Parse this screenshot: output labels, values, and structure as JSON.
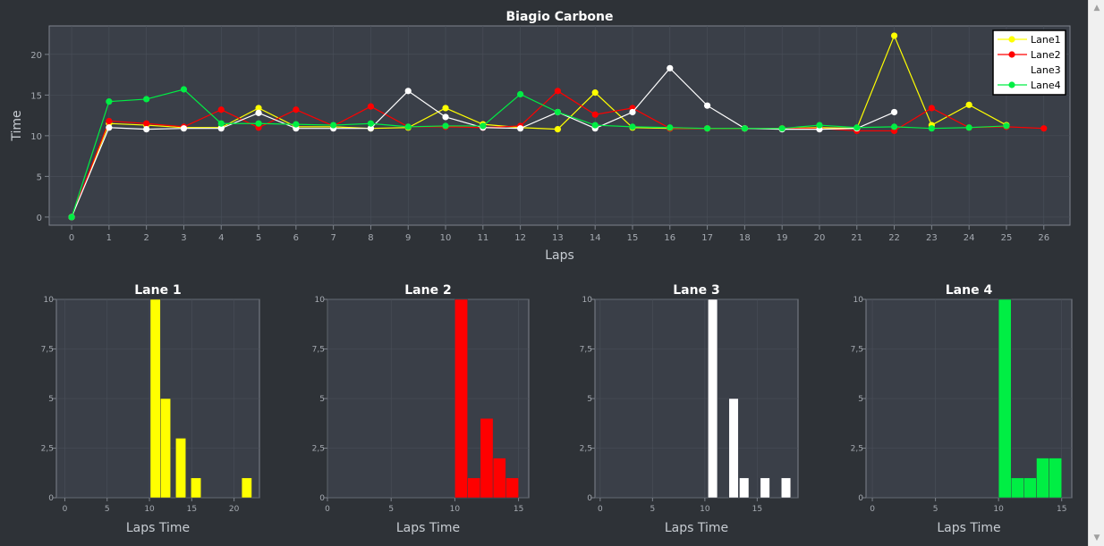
{
  "chart_data": [
    {
      "type": "line",
      "title": "Biagio Carbone",
      "xlabel": "Laps",
      "ylabel": "Time",
      "xlim": [
        -0.6,
        26.7
      ],
      "ylim": [
        -1,
        23.5
      ],
      "xticks": [
        0,
        1,
        2,
        3,
        4,
        5,
        6,
        7,
        8,
        9,
        10,
        11,
        12,
        13,
        14,
        15,
        16,
        17,
        18,
        19,
        20,
        21,
        22,
        23,
        24,
        25,
        26
      ],
      "yticks": [
        0,
        5,
        10,
        15,
        20
      ],
      "grid": true,
      "legend_position": "top-right",
      "series": [
        {
          "name": "Lane1",
          "color": "#ffff00",
          "x": [
            0,
            1,
            2,
            3,
            4,
            5,
            6,
            7,
            8,
            9,
            10,
            11,
            12,
            13,
            14,
            15,
            16,
            17,
            18,
            19,
            20,
            21,
            22,
            23,
            24,
            25
          ],
          "values": [
            0,
            11.5,
            11.3,
            11.0,
            11.0,
            13.4,
            11.1,
            11.1,
            10.9,
            11.0,
            13.4,
            11.4,
            11.0,
            10.8,
            15.3,
            11.0,
            10.9,
            10.9,
            10.9,
            10.9,
            11.0,
            10.9,
            22.3,
            11.3,
            13.8,
            11.3
          ]
        },
        {
          "name": "Lane2",
          "color": "#ff0000",
          "x": [
            0,
            1,
            2,
            3,
            4,
            5,
            6,
            7,
            8,
            9,
            10,
            11,
            12,
            13,
            14,
            15,
            16,
            17,
            18,
            19,
            20,
            21,
            22,
            23,
            24,
            25,
            26
          ],
          "values": [
            0,
            11.8,
            11.5,
            11.1,
            13.2,
            11.0,
            13.2,
            11.2,
            13.6,
            11.1,
            11.1,
            11.0,
            11.2,
            15.5,
            12.6,
            13.4,
            10.9,
            10.9,
            10.9,
            10.9,
            10.9,
            10.6,
            10.6,
            13.4,
            11.0,
            11.1,
            10.9
          ]
        },
        {
          "name": "Lane3",
          "color": "#ffffff",
          "x": [
            0,
            1,
            2,
            3,
            4,
            5,
            6,
            7,
            8,
            9,
            10,
            11,
            12,
            13,
            14,
            15,
            16,
            17,
            18,
            19,
            20,
            21,
            22
          ],
          "values": [
            0,
            11.0,
            10.8,
            10.9,
            10.9,
            12.8,
            10.9,
            10.9,
            10.9,
            15.5,
            12.3,
            11.0,
            10.9,
            12.9,
            10.9,
            12.9,
            18.3,
            13.7,
            10.9,
            10.8,
            10.8,
            10.9,
            12.9
          ]
        },
        {
          "name": "Lane4",
          "color": "#00ee44",
          "x": [
            0,
            1,
            2,
            3,
            4,
            5,
            6,
            7,
            8,
            9,
            10,
            11,
            12,
            13,
            14,
            15,
            16,
            17,
            18,
            19,
            20,
            21,
            22,
            23,
            24,
            25
          ],
          "values": [
            0,
            14.2,
            14.5,
            15.7,
            11.5,
            11.5,
            11.4,
            11.3,
            11.5,
            11.1,
            11.2,
            11.2,
            15.1,
            12.9,
            11.3,
            11.1,
            11.0,
            10.9,
            10.9,
            10.9,
            11.3,
            11.0,
            11.1,
            10.9,
            11.0,
            11.2
          ]
        }
      ]
    },
    {
      "type": "bar",
      "title": "Lane 1",
      "xlabel": "Laps Time",
      "ylabel": "",
      "color": "#ffff00",
      "xlim": [
        -1,
        23
      ],
      "ylim": [
        0,
        10
      ],
      "xticks": [
        {
          "v": 0,
          "label": "0"
        },
        {
          "v": 5,
          "label": "5"
        },
        {
          "v": 10,
          "label": "10"
        },
        {
          "v": 15,
          "label": "15"
        },
        {
          "v": 20,
          "label": "20"
        }
      ],
      "yticks": [
        {
          "v": 0,
          "label": "0"
        },
        {
          "v": 2.5,
          "label": "2,5"
        },
        {
          "v": 5,
          "label": "5"
        },
        {
          "v": 7.5,
          "label": "7,5"
        },
        {
          "v": 10,
          "label": "10"
        }
      ],
      "bins": [
        {
          "x0": 10.1,
          "x1": 11.3,
          "count": 10
        },
        {
          "x0": 11.3,
          "x1": 12.5,
          "count": 5
        },
        {
          "x0": 13.1,
          "x1": 14.3,
          "count": 3
        },
        {
          "x0": 14.9,
          "x1": 16.1,
          "count": 1
        },
        {
          "x0": 20.9,
          "x1": 22.1,
          "count": 1
        }
      ]
    },
    {
      "type": "bar",
      "title": "Lane 2",
      "xlabel": "Laps Time",
      "ylabel": "",
      "color": "#ff0000",
      "xlim": [
        0,
        15.8
      ],
      "ylim": [
        0,
        10
      ],
      "xticks": [
        {
          "v": 0,
          "label": "0"
        },
        {
          "v": 5,
          "label": "5"
        },
        {
          "v": 10,
          "label": "10"
        },
        {
          "v": 15,
          "label": "15"
        }
      ],
      "yticks": [
        {
          "v": 0,
          "label": "0"
        },
        {
          "v": 2.5,
          "label": "2,5"
        },
        {
          "v": 5,
          "label": "5"
        },
        {
          "v": 7.5,
          "label": "7,5"
        },
        {
          "v": 10,
          "label": "10"
        }
      ],
      "bins": [
        {
          "x0": 10.0,
          "x1": 11.0,
          "count": 10
        },
        {
          "x0": 11.0,
          "x1": 12.0,
          "count": 1
        },
        {
          "x0": 12.0,
          "x1": 13.0,
          "count": 4
        },
        {
          "x0": 13.0,
          "x1": 14.0,
          "count": 2
        },
        {
          "x0": 14.0,
          "x1": 15.0,
          "count": 1
        }
      ]
    },
    {
      "type": "bar",
      "title": "Lane 3",
      "xlabel": "Laps Time",
      "ylabel": "",
      "color": "#ffffff",
      "xlim": [
        -0.5,
        18.9
      ],
      "ylim": [
        0,
        10
      ],
      "xticks": [
        {
          "v": 0,
          "label": "0"
        },
        {
          "v": 5,
          "label": "5"
        },
        {
          "v": 10,
          "label": "10"
        },
        {
          "v": 15,
          "label": "15"
        }
      ],
      "yticks": [
        {
          "v": 0,
          "label": "0"
        },
        {
          "v": 2.5,
          "label": "2,5"
        },
        {
          "v": 5,
          "label": "5"
        },
        {
          "v": 7.5,
          "label": "7,5"
        },
        {
          "v": 10,
          "label": "10"
        }
      ],
      "bins": [
        {
          "x0": 10.3,
          "x1": 11.2,
          "count": 10
        },
        {
          "x0": 12.3,
          "x1": 13.2,
          "count": 5
        },
        {
          "x0": 13.3,
          "x1": 14.2,
          "count": 1
        },
        {
          "x0": 15.3,
          "x1": 16.2,
          "count": 1
        },
        {
          "x0": 17.3,
          "x1": 18.2,
          "count": 1
        }
      ]
    },
    {
      "type": "bar",
      "title": "Lane 4",
      "xlabel": "Laps Time",
      "ylabel": "",
      "color": "#00ee44",
      "xlim": [
        -0.5,
        15.8
      ],
      "ylim": [
        0,
        10
      ],
      "xticks": [
        {
          "v": 0,
          "label": "0"
        },
        {
          "v": 5,
          "label": "5"
        },
        {
          "v": 10,
          "label": "10"
        },
        {
          "v": 15,
          "label": "15"
        }
      ],
      "yticks": [
        {
          "v": 0,
          "label": "0"
        },
        {
          "v": 2.5,
          "label": "2,5"
        },
        {
          "v": 5,
          "label": "5"
        },
        {
          "v": 7.5,
          "label": "7,5"
        },
        {
          "v": 10,
          "label": "10"
        }
      ],
      "bins": [
        {
          "x0": 10.0,
          "x1": 11.0,
          "count": 10
        },
        {
          "x0": 11.0,
          "x1": 12.0,
          "count": 1
        },
        {
          "x0": 12.0,
          "x1": 13.0,
          "count": 1
        },
        {
          "x0": 13.0,
          "x1": 14.0,
          "count": 2
        },
        {
          "x0": 14.0,
          "x1": 15.0,
          "count": 2
        }
      ]
    }
  ],
  "theme": {
    "page_bg": "#2e3237",
    "plot_bg": "#3a3f48",
    "grid": "#4a505a",
    "axis": "#7d838c",
    "tick_text": "#a6abb2",
    "label_text": "#c7ccd2",
    "title_text": "#ffffff",
    "legend_bg": "#ffffff",
    "legend_border": "#000000"
  }
}
